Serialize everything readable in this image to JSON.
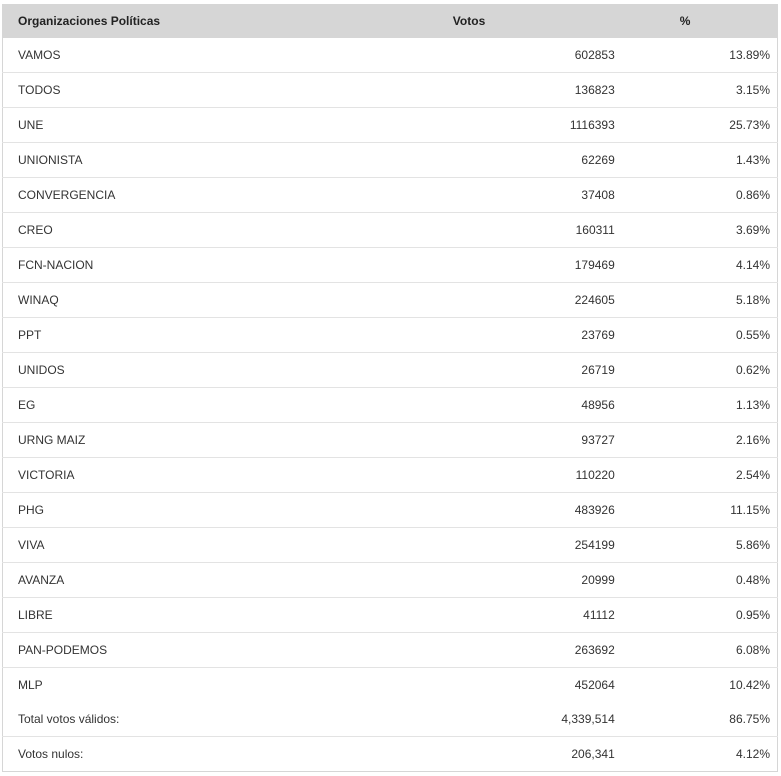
{
  "table": {
    "headers": {
      "organization": "Organizaciones Políticas",
      "votes": "Votos",
      "percent": "%"
    },
    "rows": [
      {
        "name": "VAMOS",
        "votes": "602853",
        "percent": "13.89%"
      },
      {
        "name": "TODOS",
        "votes": "136823",
        "percent": "3.15%"
      },
      {
        "name": "UNE",
        "votes": "1116393",
        "percent": "25.73%"
      },
      {
        "name": "UNIONISTA",
        "votes": "62269",
        "percent": "1.43%"
      },
      {
        "name": "CONVERGENCIA",
        "votes": "37408",
        "percent": "0.86%"
      },
      {
        "name": "CREO",
        "votes": "160311",
        "percent": "3.69%"
      },
      {
        "name": "FCN-NACION",
        "votes": "179469",
        "percent": "4.14%"
      },
      {
        "name": "WINAQ",
        "votes": "224605",
        "percent": "5.18%"
      },
      {
        "name": "PPT",
        "votes": "23769",
        "percent": "0.55%"
      },
      {
        "name": "UNIDOS",
        "votes": "26719",
        "percent": "0.62%"
      },
      {
        "name": "EG",
        "votes": "48956",
        "percent": "1.13%"
      },
      {
        "name": "URNG MAIZ",
        "votes": "93727",
        "percent": "2.16%"
      },
      {
        "name": "VICTORIA",
        "votes": "110220",
        "percent": "2.54%"
      },
      {
        "name": "PHG",
        "votes": "483926",
        "percent": "11.15%"
      },
      {
        "name": "VIVA",
        "votes": "254199",
        "percent": "5.86%"
      },
      {
        "name": "AVANZA",
        "votes": "20999",
        "percent": "0.48%"
      },
      {
        "name": "LIBRE",
        "votes": "41112",
        "percent": "0.95%"
      },
      {
        "name": "PAN-PODEMOS",
        "votes": "263692",
        "percent": "6.08%"
      },
      {
        "name": "MLP",
        "votes": "452064",
        "percent": "10.42%"
      }
    ],
    "totals": [
      {
        "name": "Total votos válidos:",
        "votes": "4,339,514",
        "percent": "86.75%"
      },
      {
        "name": "Votos nulos:",
        "votes": "206,341",
        "percent": "4.12%"
      }
    ]
  },
  "colors": {
    "header_bg": "#d6d6d6",
    "row_divider": "#e3e3e3",
    "text": "#333333"
  }
}
